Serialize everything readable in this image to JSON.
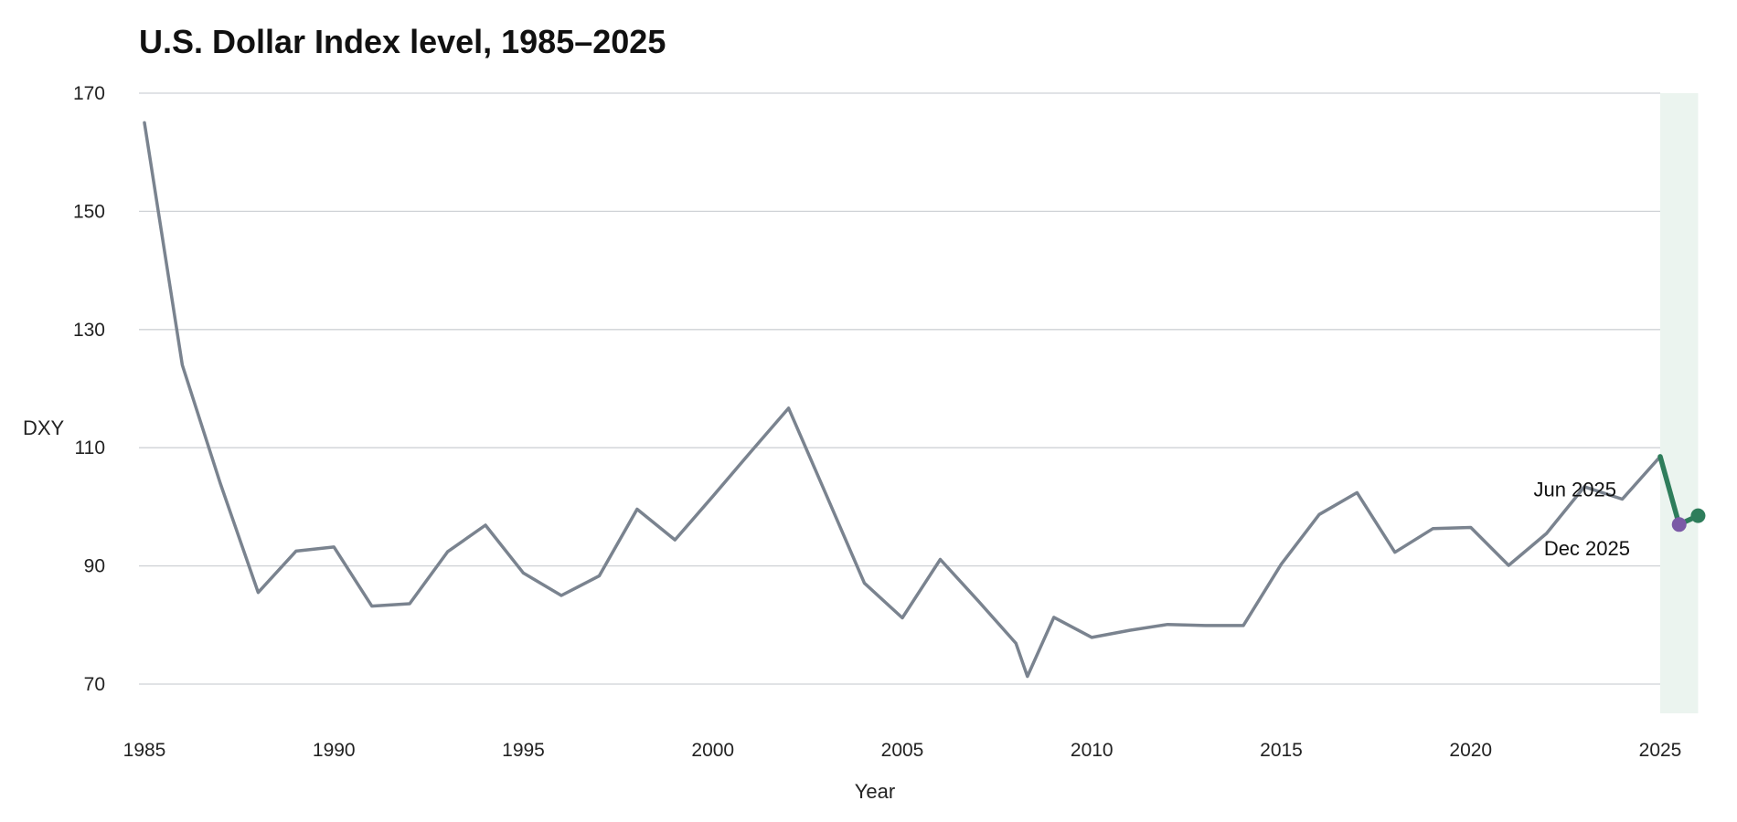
{
  "chart_data": {
    "type": "line",
    "title": "U.S. Dollar Index level, 1985–2025",
    "xlabel": "Year",
    "ylabel": "DXY",
    "xlim": [
      1985,
      2026
    ],
    "ylim": [
      65,
      170
    ],
    "y_ticks": [
      70,
      90,
      110,
      130,
      150,
      170
    ],
    "x_ticks": [
      1985,
      1990,
      1995,
      2000,
      2005,
      2010,
      2015,
      2020,
      2025
    ],
    "grid": "horizontal",
    "highlight_region": {
      "x": [
        2025,
        2026
      ],
      "color": "#ebf4ef"
    },
    "series": [
      {
        "name": "",
        "color": "#7a838f",
        "x": [
          1985,
          1986,
          1987,
          1988,
          1989,
          1990,
          1991,
          1992,
          1993,
          1994,
          1995,
          1996,
          1997,
          1998,
          1999,
          2000,
          2001,
          2002,
          2003,
          2004,
          2005,
          2006,
          2007,
          2008,
          2008.3,
          2009,
          2010,
          2011,
          2012,
          2013,
          2014,
          2015,
          2016,
          2017,
          2018,
          2019,
          2020,
          2021,
          2022,
          2023,
          2024,
          2025
        ],
        "y": [
          165,
          124,
          104,
          85.5,
          92.5,
          93.2,
          83.2,
          83.6,
          92.4,
          96.9,
          88.8,
          85,
          88.3,
          99.6,
          94.4,
          101.8,
          109.3,
          116.7,
          101.9,
          87.1,
          81.2,
          91.1,
          84.1,
          76.9,
          71.3,
          81.3,
          77.9,
          79.1,
          80.1,
          79.9,
          79.9,
          90.3,
          98.7,
          102.4,
          92.3,
          96.3,
          96.5,
          90.1,
          95.5,
          103.4,
          101.3,
          108.5
        ]
      },
      {
        "name": "",
        "color": "#2e7d5b",
        "x": [
          2025,
          2025.5,
          2026
        ],
        "y": [
          108.5,
          97,
          98.5
        ]
      }
    ],
    "points": [
      {
        "label": "Jun 2025",
        "x": 2025.5,
        "y": 97,
        "color": "#7b5aa6"
      },
      {
        "label": "Dec 2025",
        "x": 2026,
        "y": 98.5,
        "color": "#2e7d5b"
      }
    ]
  }
}
